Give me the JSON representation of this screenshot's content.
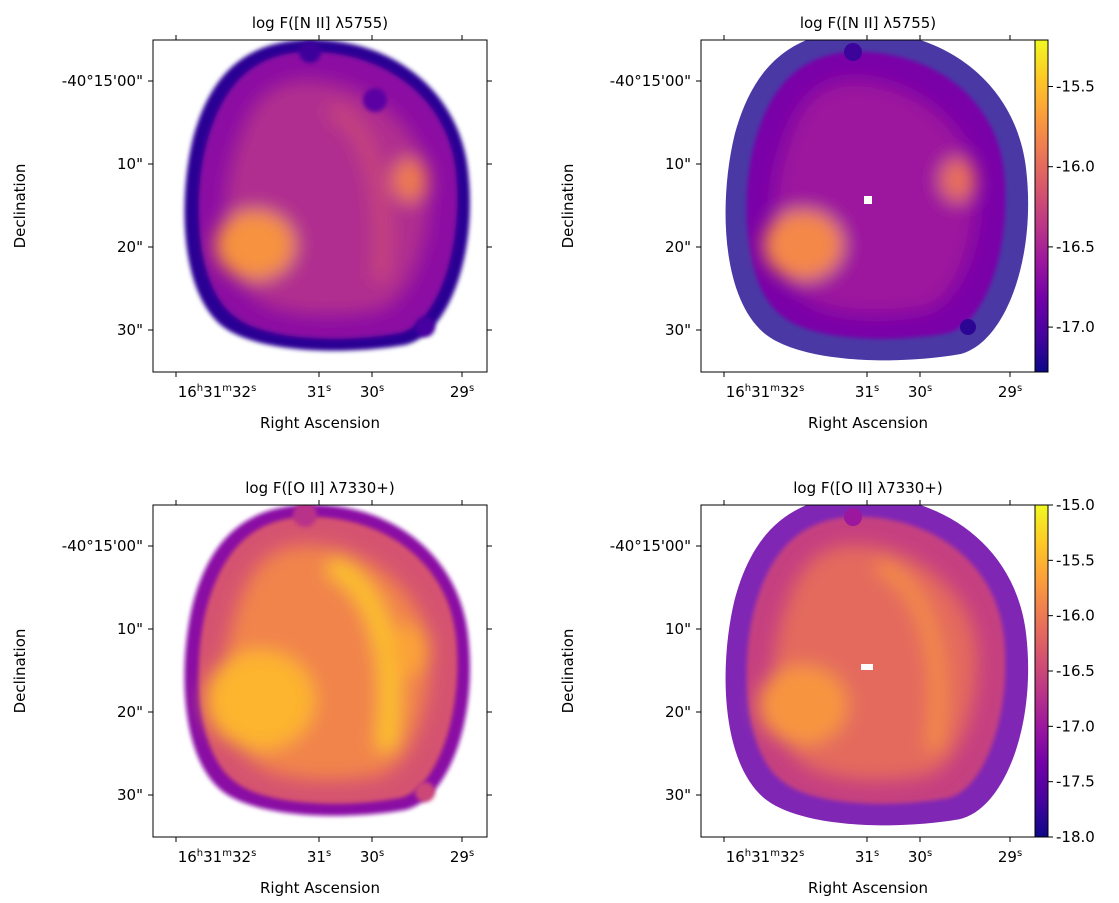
{
  "chart_data": [
    {
      "type": "image",
      "title": "log F([N II] λ5755)",
      "xlabel": "Right Ascension",
      "ylabel": "Declination",
      "xticklabels": [
        "16h31m32s",
        "31s",
        "30s",
        "29s"
      ],
      "yticklabels": [
        "-40°15'00\"",
        "10\"",
        "20\"",
        "30\""
      ]
    },
    {
      "type": "image",
      "title": "log F([N II] λ5755)",
      "xlabel": "Right Ascension",
      "ylabel": "Declination",
      "xticklabels": [
        "16h31m32s",
        "31s",
        "30s",
        "29s"
      ],
      "yticklabels": [
        "-40°15'00\"",
        "10\"",
        "20\"",
        "30\""
      ],
      "colorbar": {
        "clim": [
          -17.28,
          -15.21
        ],
        "ticks": [
          -15.5,
          {
            "value": -16,
            "label": "-16.0"
          },
          -16.5,
          {
            "value": -17,
            "label": "-17.0"
          }
        ],
        "colors": [
          "#0d0887",
          "#46039f",
          "#7201a8",
          "#9c179e",
          "#bd3786",
          "#d8576b",
          "#ed7953",
          "#fb9f3a",
          "#fdca26",
          "#f0f921"
        ]
      }
    },
    {
      "type": "image",
      "title": "log F([O II] λ7330+)",
      "xlabel": "Right Ascension",
      "ylabel": "Declination",
      "xticklabels": [
        "16h31m32s",
        "31s",
        "30s",
        "29s"
      ],
      "yticklabels": [
        "-40°15'00\"",
        "10\"",
        "20\"",
        "30\""
      ]
    },
    {
      "type": "image",
      "title": "log F([O II] λ7330+)",
      "xlabel": "Right Ascension",
      "ylabel": "Declination",
      "xticklabels": [
        "16h31m32s",
        "31s",
        "30s",
        "29s"
      ],
      "yticklabels": [
        "-40°15'00\"",
        "10\"",
        "20\"",
        "30\""
      ],
      "colorbar": {
        "clim": [
          -18,
          -15
        ],
        "ticks": [
          {
            "value": -15,
            "label": "-15.0"
          },
          -15.5,
          {
            "value": -16,
            "label": "-16.0"
          },
          -16.5,
          {
            "value": -17,
            "label": "-17.0"
          },
          -17.5,
          {
            "value": -18,
            "label": "-18.0"
          }
        ],
        "colors": [
          "#0d0887",
          "#46039f",
          "#7201a8",
          "#9c179e",
          "#bd3786",
          "#d8576b",
          "#ed7953",
          "#fb9f3a",
          "#fdca26",
          "#f0f921"
        ]
      }
    }
  ]
}
